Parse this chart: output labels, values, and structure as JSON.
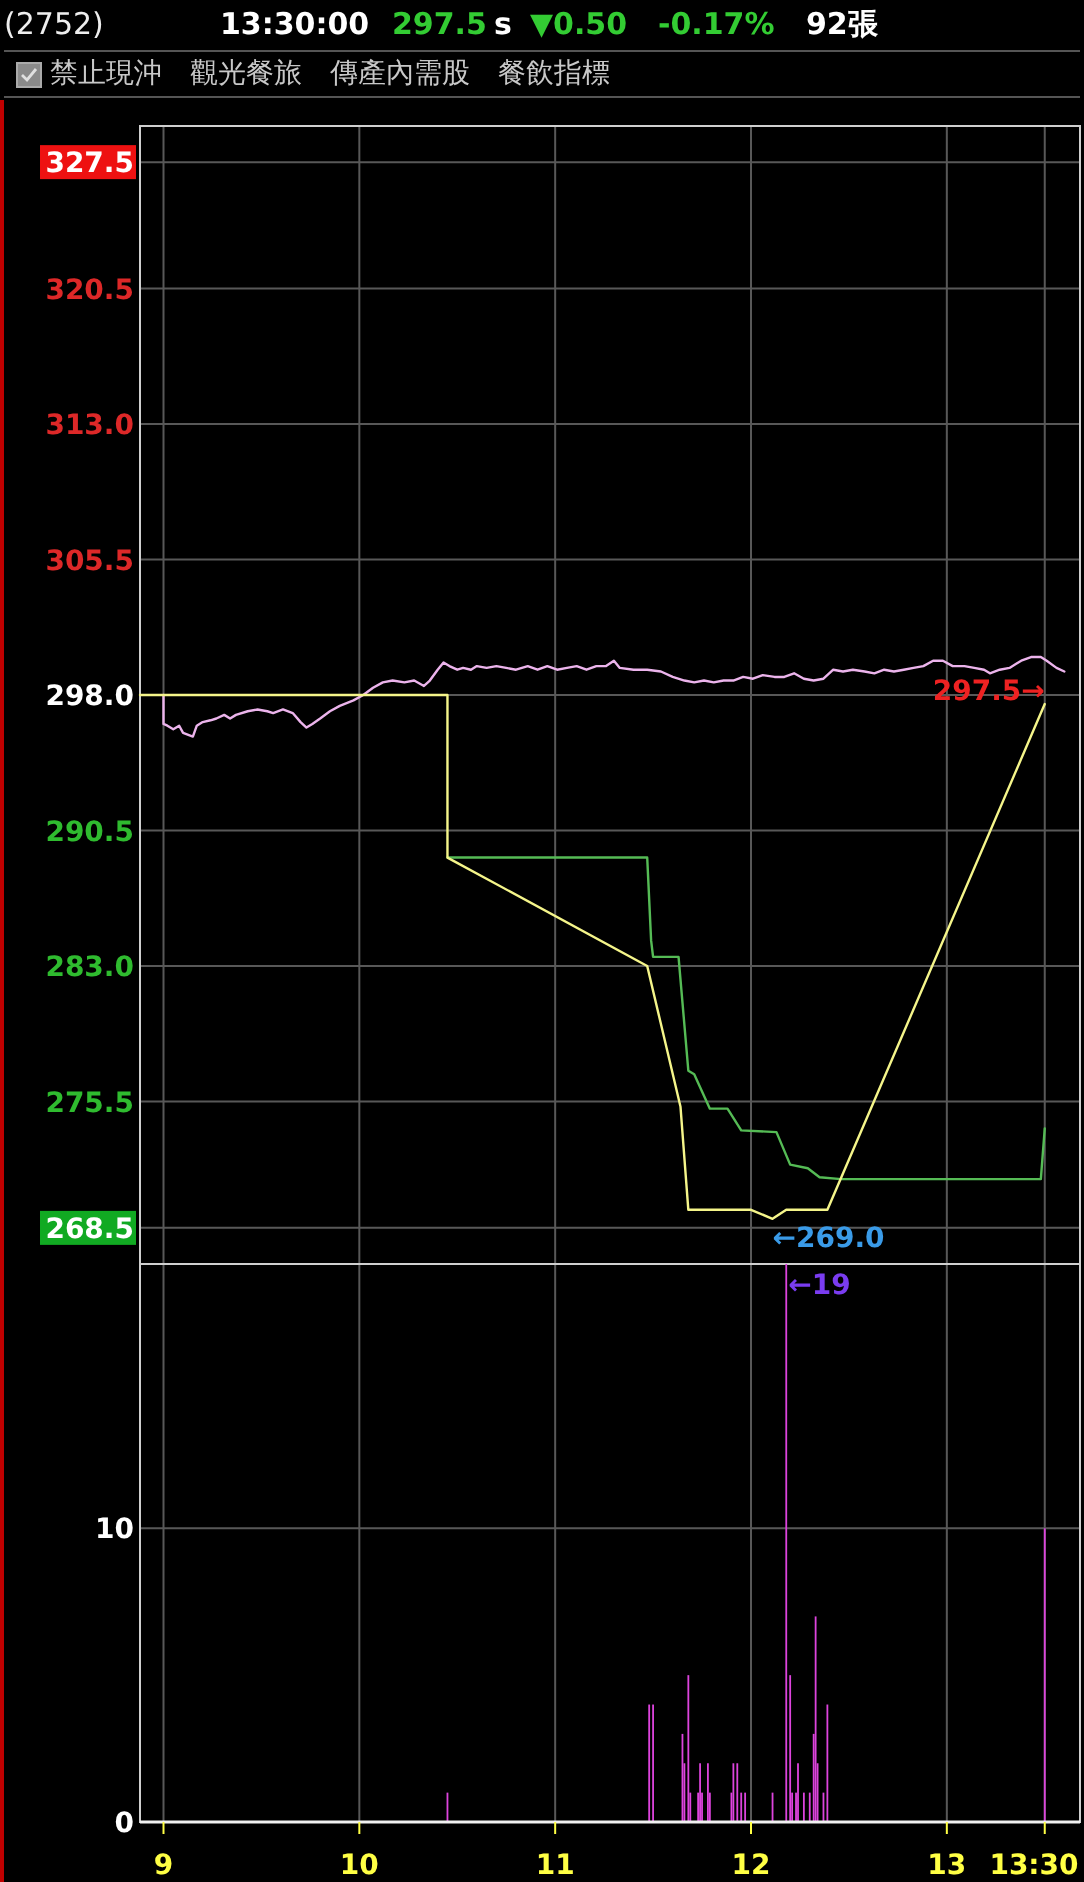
{
  "chart_data": [
    {
      "type": "other",
      "title": "(2752)",
      "annotations": [
        "13:30:00",
        "297.5",
        "s",
        "▼0.50",
        "-0.17%",
        "92張",
        "禁止現沖",
        "觀光餐旅",
        "傳產內需股",
        "餐飲指標"
      ]
    },
    {
      "type": "line",
      "xlim": [
        8.88,
        13.68
      ],
      "xticks": [
        9,
        10,
        11,
        12,
        13,
        13.5
      ],
      "ylim": [
        266.5,
        329.5
      ],
      "yticks": [
        327.5,
        320.5,
        {
          "value": 313,
          "label": "313.0"
        },
        305.5,
        {
          "value": 298,
          "label": "298.0"
        },
        290.5,
        {
          "value": 283,
          "label": "283.0"
        },
        275.5,
        268.5
      ],
      "tick_labels": "y",
      "grid": true,
      "series": [
        {
          "color": "#ecb4ec",
          "x": [
            9.0,
            9.0,
            9.02,
            9.05,
            9.08,
            9.1,
            9.15,
            9.17,
            9.2,
            9.24,
            9.27,
            9.31,
            9.34,
            9.37,
            9.43,
            9.48,
            9.53,
            9.56,
            9.61,
            9.66,
            9.7,
            9.73,
            9.76,
            9.8,
            9.85,
            9.9,
            9.97,
            10.02,
            10.07,
            10.12,
            10.17,
            10.23,
            10.28,
            10.33,
            10.36,
            10.4,
            10.43,
            10.46,
            10.5,
            10.53,
            10.57,
            10.6,
            10.65,
            10.7,
            10.75,
            10.8,
            10.86,
            10.91,
            10.96,
            11.01,
            11.06,
            11.11,
            11.16,
            11.21,
            11.26,
            11.3,
            11.33,
            11.4,
            11.47,
            11.54,
            11.6,
            11.66,
            11.71,
            11.76,
            11.81,
            11.86,
            11.91,
            11.96,
            12.01,
            12.06,
            12.12,
            12.17,
            12.22,
            12.27,
            12.32,
            12.37,
            12.42,
            12.47,
            12.52,
            12.58,
            12.63,
            12.68,
            12.73,
            12.78,
            12.83,
            12.88,
            12.93,
            12.98,
            13.03,
            13.09,
            13.14,
            13.19,
            13.22,
            13.27,
            13.32,
            13.38,
            13.43,
            13.48,
            13.51,
            13.56,
            13.6
          ],
          "values": [
            298.0,
            296.4,
            296.3,
            296.1,
            296.3,
            295.9,
            295.7,
            296.3,
            296.5,
            296.6,
            296.7,
            296.9,
            296.7,
            296.9,
            297.1,
            297.2,
            297.1,
            297.0,
            297.2,
            297.0,
            296.5,
            296.2,
            296.4,
            296.7,
            297.1,
            297.4,
            297.7,
            298.0,
            298.4,
            298.7,
            298.8,
            298.7,
            298.8,
            298.5,
            298.8,
            299.4,
            299.8,
            299.6,
            299.4,
            299.5,
            299.4,
            299.6,
            299.5,
            299.6,
            299.5,
            299.4,
            299.6,
            299.4,
            299.6,
            299.4,
            299.5,
            299.6,
            299.4,
            299.6,
            299.6,
            299.9,
            299.5,
            299.4,
            299.4,
            299.3,
            299.0,
            298.8,
            298.7,
            298.8,
            298.7,
            298.8,
            298.8,
            299.0,
            298.9,
            299.1,
            299.0,
            299.0,
            299.2,
            298.9,
            298.8,
            298.9,
            299.4,
            299.3,
            299.4,
            299.3,
            299.2,
            299.4,
            299.3,
            299.4,
            299.5,
            299.6,
            299.9,
            299.9,
            299.6,
            299.6,
            299.5,
            299.4,
            299.2,
            299.4,
            299.5,
            299.9,
            300.1,
            300.1,
            299.9,
            299.5,
            299.3
          ]
        },
        {
          "color": "#55bb55",
          "x": [
            10.45,
            11.47,
            11.49,
            11.5,
            11.63,
            11.68,
            11.71,
            11.79,
            11.88,
            11.95,
            12.13,
            12.2,
            12.29,
            12.35,
            12.46,
            13.48,
            13.5
          ],
          "values": [
            289.0,
            289.0,
            284.4,
            283.5,
            283.5,
            277.2,
            277.0,
            275.1,
            275.1,
            273.9,
            273.8,
            272.0,
            271.8,
            271.3,
            271.2,
            271.2,
            274.0
          ]
        },
        {
          "color": "#f5f58a",
          "x": [
            8.88,
            10.45,
            10.45,
            11.47,
            11.64,
            11.68,
            12.0,
            12.11,
            12.18,
            12.39,
            13.5
          ],
          "values": [
            298.0,
            298.0,
            289.0,
            283.0,
            275.2,
            269.5,
            269.5,
            269.0,
            269.5,
            269.5,
            297.5
          ]
        }
      ],
      "annotations": [
        {
          "text": "297.5→",
          "x": 13.5,
          "y": 297.5
        },
        {
          "text": "←269.0",
          "x": 12.11,
          "y": 269.0
        }
      ]
    },
    {
      "type": "bar",
      "x": [
        10.45,
        11.48,
        11.5,
        11.65,
        11.66,
        11.68,
        11.69,
        11.73,
        11.74,
        11.75,
        11.78,
        11.79,
        11.9,
        11.91,
        11.93,
        11.95,
        11.97,
        12.11,
        12.18,
        12.2,
        12.21,
        12.23,
        12.24,
        12.27,
        12.3,
        12.32,
        12.33,
        12.34,
        12.37,
        12.39,
        13.5
      ],
      "values": [
        1,
        4,
        4,
        3,
        2,
        5,
        1,
        1,
        2,
        1,
        2,
        1,
        1,
        2,
        2,
        1,
        1,
        1,
        19,
        5,
        1,
        1,
        2,
        1,
        1,
        3,
        7,
        2,
        1,
        4,
        10
      ],
      "color": "#dd44dd",
      "xlim": [
        8.88,
        13.68
      ],
      "xticks": [
        9,
        10,
        11,
        12,
        13,
        {
          "value": 13.5,
          "label": "13:30"
        }
      ],
      "ylim": [
        0,
        19
      ],
      "yticks": [
        0,
        10
      ],
      "grid": true,
      "annotations": [
        {
          "text": "←19",
          "x": 12.18,
          "y": 19
        }
      ]
    }
  ]
}
